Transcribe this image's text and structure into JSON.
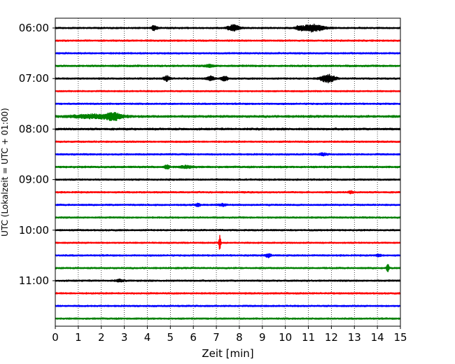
{
  "chart_data": {
    "type": "line",
    "subtype": "helicorder",
    "title": "",
    "xlabel": "Zeit  [min]",
    "ylabel": "UTC (Lokalzeit = UTC + 01:00)",
    "xlim": [
      0,
      15
    ],
    "x_ticks": [
      0,
      1,
      2,
      3,
      4,
      5,
      6,
      7,
      8,
      9,
      10,
      11,
      12,
      13,
      14,
      15
    ],
    "x_grid": "dotted vertical lines at every minute",
    "y_tick_labels": [
      "06:00",
      "07:00",
      "08:00",
      "09:00",
      "10:00",
      "11:00"
    ],
    "trace_minutes": 15,
    "color_cycle": [
      "#000000",
      "#ff0000",
      "#0000ff",
      "#008000"
    ],
    "traces": [
      {
        "start": "06:00",
        "color": "#000000",
        "noise": 0.22,
        "events": [
          {
            "t": 4.3,
            "amp": 0.8,
            "dur": 0.25
          },
          {
            "t": 7.75,
            "amp": 1.0,
            "dur": 0.5
          },
          {
            "t": 10.6,
            "amp": 0.6,
            "dur": 0.3
          },
          {
            "t": 11.2,
            "amp": 1.2,
            "dur": 0.9
          }
        ]
      },
      {
        "start": "06:15",
        "color": "#ff0000",
        "noise": 0.22,
        "events": []
      },
      {
        "start": "06:30",
        "color": "#0000ff",
        "noise": 0.22,
        "events": []
      },
      {
        "start": "06:45",
        "color": "#008000",
        "noise": 0.25,
        "events": [
          {
            "t": 6.7,
            "amp": 0.35,
            "dur": 0.4
          }
        ]
      },
      {
        "start": "07:00",
        "color": "#000000",
        "noise": 0.22,
        "events": [
          {
            "t": 4.85,
            "amp": 0.8,
            "dur": 0.3
          },
          {
            "t": 6.75,
            "amp": 0.7,
            "dur": 0.3
          },
          {
            "t": 7.35,
            "amp": 0.9,
            "dur": 0.25
          },
          {
            "t": 11.85,
            "amp": 1.3,
            "dur": 0.6
          }
        ]
      },
      {
        "start": "07:15",
        "color": "#ff0000",
        "noise": 0.2,
        "events": []
      },
      {
        "start": "07:30",
        "color": "#0000ff",
        "noise": 0.22,
        "events": []
      },
      {
        "start": "07:45",
        "color": "#008000",
        "noise": 0.3,
        "events": [
          {
            "t": 1.8,
            "amp": 0.6,
            "dur": 2.0
          },
          {
            "t": 2.55,
            "amp": 1.0,
            "dur": 0.6
          }
        ]
      },
      {
        "start": "08:00",
        "color": "#000000",
        "noise": 0.28,
        "events": []
      },
      {
        "start": "08:15",
        "color": "#ff0000",
        "noise": 0.22,
        "events": []
      },
      {
        "start": "08:30",
        "color": "#0000ff",
        "noise": 0.22,
        "events": [
          {
            "t": 11.65,
            "amp": 0.4,
            "dur": 0.3
          }
        ]
      },
      {
        "start": "08:45",
        "color": "#008000",
        "noise": 0.25,
        "events": [
          {
            "t": 4.85,
            "amp": 0.7,
            "dur": 0.2
          },
          {
            "t": 5.7,
            "amp": 0.4,
            "dur": 0.6
          }
        ]
      },
      {
        "start": "09:00",
        "color": "#000000",
        "noise": 0.22,
        "events": []
      },
      {
        "start": "09:15",
        "color": "#ff0000",
        "noise": 0.22,
        "events": [
          {
            "t": 12.85,
            "amp": 0.4,
            "dur": 0.2
          }
        ]
      },
      {
        "start": "09:30",
        "color": "#0000ff",
        "noise": 0.22,
        "events": [
          {
            "t": 6.2,
            "amp": 0.5,
            "dur": 0.2
          },
          {
            "t": 7.3,
            "amp": 0.4,
            "dur": 0.3
          }
        ]
      },
      {
        "start": "09:45",
        "color": "#008000",
        "noise": 0.22,
        "events": []
      },
      {
        "start": "10:00",
        "color": "#000000",
        "noise": 0.22,
        "events": []
      },
      {
        "start": "10:15",
        "color": "#ff0000",
        "noise": 0.2,
        "events": [
          {
            "t": 7.15,
            "amp": 2.5,
            "dur": 0.08
          }
        ]
      },
      {
        "start": "10:30",
        "color": "#0000ff",
        "noise": 0.22,
        "events": [
          {
            "t": 9.25,
            "amp": 0.6,
            "dur": 0.25
          },
          {
            "t": 14.05,
            "amp": 0.4,
            "dur": 0.2
          }
        ]
      },
      {
        "start": "10:45",
        "color": "#008000",
        "noise": 0.22,
        "events": [
          {
            "t": 14.45,
            "amp": 1.4,
            "dur": 0.1
          }
        ]
      },
      {
        "start": "11:00",
        "color": "#000000",
        "noise": 0.22,
        "events": [
          {
            "t": 2.8,
            "amp": 0.35,
            "dur": 0.3
          }
        ]
      },
      {
        "start": "11:15",
        "color": "#ff0000",
        "noise": 0.22,
        "events": []
      },
      {
        "start": "11:30",
        "color": "#0000ff",
        "noise": 0.22,
        "events": []
      },
      {
        "start": "11:45",
        "color": "#008000",
        "noise": 0.22,
        "events": []
      }
    ]
  }
}
